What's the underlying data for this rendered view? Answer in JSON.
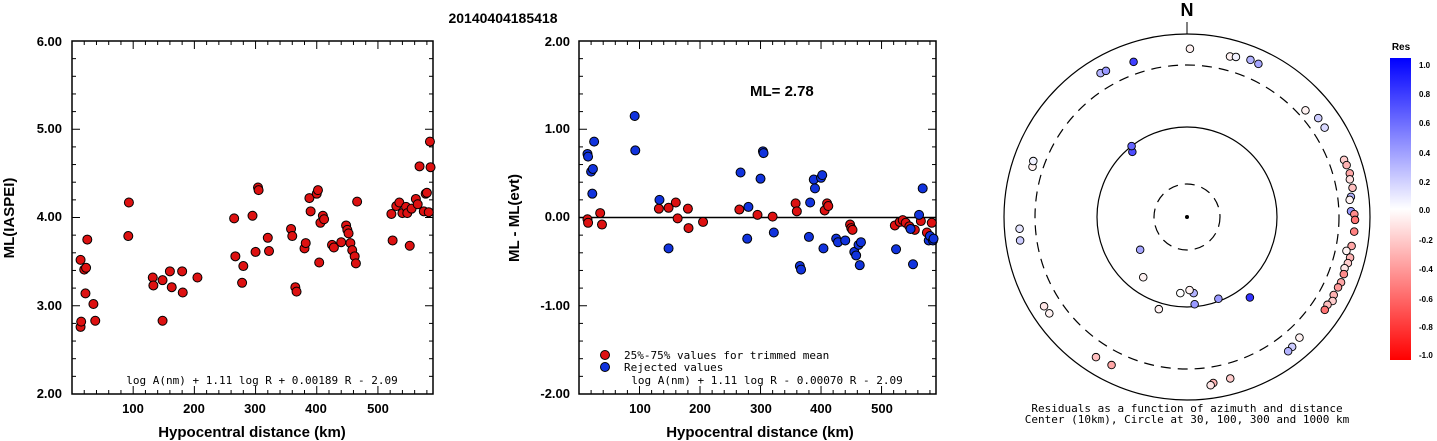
{
  "figure": {
    "title": "20140404185418"
  },
  "chart_data": [
    {
      "type": "scatter",
      "xlabel": "Hypocentral distance (km)",
      "ylabel": "ML(IASPEI)",
      "xlim": [
        0,
        590
      ],
      "ylim": [
        2.0,
        6.0
      ],
      "xticks": [
        "100",
        "200",
        "300",
        "400",
        "500"
      ],
      "yticks": [
        "2.00",
        "3.00",
        "4.00",
        "5.00",
        "6.00"
      ],
      "formula": "log A(nm) + 1.11 log R + 0.00189 R - 2.09",
      "series": [
        {
          "color": "#dd1111",
          "points": [
            [
              14,
              2.76
            ],
            [
              15,
              2.82
            ],
            [
              14,
              3.52
            ],
            [
              20,
              3.41
            ],
            [
              22,
              3.14
            ],
            [
              23,
              3.43
            ],
            [
              25,
              3.75
            ],
            [
              35,
              3.02
            ],
            [
              38,
              2.83
            ],
            [
              92,
              3.79
            ],
            [
              93,
              4.17
            ],
            [
              132,
              3.32
            ],
            [
              133,
              3.23
            ],
            [
              148,
              2.83
            ],
            [
              148,
              3.29
            ],
            [
              160,
              3.39
            ],
            [
              163,
              3.21
            ],
            [
              180,
              3.39
            ],
            [
              181,
              3.15
            ],
            [
              205,
              3.32
            ],
            [
              265,
              3.99
            ],
            [
              267,
              3.56
            ],
            [
              278,
              3.26
            ],
            [
              280,
              3.45
            ],
            [
              295,
              4.02
            ],
            [
              300,
              3.61
            ],
            [
              304,
              4.34
            ],
            [
              305,
              4.31
            ],
            [
              320,
              3.77
            ],
            [
              322,
              3.62
            ],
            [
              358,
              3.87
            ],
            [
              360,
              3.79
            ],
            [
              365,
              3.21
            ],
            [
              367,
              3.16
            ],
            [
              380,
              3.65
            ],
            [
              382,
              3.71
            ],
            [
              388,
              4.22
            ],
            [
              390,
              4.07
            ],
            [
              400,
              4.27
            ],
            [
              402,
              4.31
            ],
            [
              404,
              3.49
            ],
            [
              406,
              3.94
            ],
            [
              410,
              4.02
            ],
            [
              412,
              3.98
            ],
            [
              425,
              3.69
            ],
            [
              428,
              3.66
            ],
            [
              440,
              3.72
            ],
            [
              448,
              3.91
            ],
            [
              450,
              3.86
            ],
            [
              452,
              3.82
            ],
            [
              455,
              3.71
            ],
            [
              458,
              3.63
            ],
            [
              462,
              3.56
            ],
            [
              464,
              3.48
            ],
            [
              466,
              4.18
            ],
            [
              522,
              4.04
            ],
            [
              524,
              3.74
            ],
            [
              530,
              4.13
            ],
            [
              535,
              4.17
            ],
            [
              540,
              4.05
            ],
            [
              546,
              4.12
            ],
            [
              548,
              4.05
            ],
            [
              552,
              3.68
            ],
            [
              555,
              4.1
            ],
            [
              562,
              4.21
            ],
            [
              565,
              4.15
            ],
            [
              568,
              4.58
            ],
            [
              575,
              4.07
            ],
            [
              578,
              4.27
            ],
            [
              580,
              4.28
            ],
            [
              583,
              4.06
            ],
            [
              585,
              4.86
            ],
            [
              586,
              4.57
            ]
          ]
        }
      ]
    },
    {
      "type": "scatter",
      "xlabel": "Hypocentral distance (km)",
      "ylabel": "ML - ML(evt)",
      "xlim": [
        0,
        590
      ],
      "ylim": [
        -2.0,
        2.0
      ],
      "xticks": [
        "100",
        "200",
        "300",
        "400",
        "500"
      ],
      "yticks": [
        "-2.00",
        "-1.00",
        "0.00",
        "1.00",
        "2.00"
      ],
      "annotation": "ML= 2.78",
      "formula": "log A(nm) + 1.11 log R - 0.00070 R - 2.09",
      "legend": [
        {
          "label": "25%-75% values for trimmed mean",
          "color": "#dd1111"
        },
        {
          "label": "Rejected values",
          "color": "#1133dd"
        }
      ],
      "series": [
        {
          "name": "25%-75% values for trimmed mean",
          "color": "#dd1111",
          "points": [
            [
              14,
              -0.02
            ],
            [
              15,
              -0.06
            ],
            [
              35,
              0.05
            ],
            [
              38,
              -0.08
            ],
            [
              132,
              0.1
            ],
            [
              148,
              0.11
            ],
            [
              160,
              0.17
            ],
            [
              163,
              -0.01
            ],
            [
              180,
              0.1
            ],
            [
              181,
              -0.12
            ],
            [
              205,
              -0.05
            ],
            [
              265,
              0.09
            ],
            [
              295,
              0.03
            ],
            [
              320,
              0.01
            ],
            [
              358,
              0.16
            ],
            [
              360,
              0.07
            ],
            [
              406,
              0.08
            ],
            [
              410,
              0.16
            ],
            [
              412,
              0.13
            ],
            [
              448,
              -0.08
            ],
            [
              450,
              -0.12
            ],
            [
              452,
              -0.14
            ],
            [
              522,
              -0.09
            ],
            [
              530,
              -0.05
            ],
            [
              535,
              -0.03
            ],
            [
              540,
              -0.06
            ],
            [
              546,
              -0.1
            ],
            [
              555,
              -0.14
            ],
            [
              565,
              -0.04
            ],
            [
              575,
              -0.17
            ],
            [
              583,
              -0.06
            ]
          ]
        },
        {
          "name": "Rejected values",
          "color": "#1133dd",
          "points": [
            [
              14,
              0.72
            ],
            [
              15,
              0.69
            ],
            [
              20,
              0.52
            ],
            [
              22,
              0.27
            ],
            [
              23,
              0.55
            ],
            [
              25,
              0.86
            ],
            [
              92,
              1.15
            ],
            [
              93,
              0.76
            ],
            [
              133,
              0.2
            ],
            [
              148,
              -0.35
            ],
            [
              267,
              0.51
            ],
            [
              278,
              -0.24
            ],
            [
              280,
              0.12
            ],
            [
              300,
              0.44
            ],
            [
              304,
              0.75
            ],
            [
              305,
              0.73
            ],
            [
              322,
              -0.17
            ],
            [
              365,
              -0.55
            ],
            [
              367,
              -0.59
            ],
            [
              380,
              -0.22
            ],
            [
              382,
              0.17
            ],
            [
              388,
              0.43
            ],
            [
              390,
              0.33
            ],
            [
              400,
              0.45
            ],
            [
              402,
              0.48
            ],
            [
              404,
              -0.35
            ],
            [
              425,
              -0.24
            ],
            [
              428,
              -0.28
            ],
            [
              440,
              -0.26
            ],
            [
              455,
              -0.39
            ],
            [
              458,
              -0.43
            ],
            [
              462,
              -0.31
            ],
            [
              464,
              -0.54
            ],
            [
              466,
              -0.28
            ],
            [
              524,
              -0.36
            ],
            [
              548,
              -0.13
            ],
            [
              552,
              -0.53
            ],
            [
              562,
              0.03
            ],
            [
              568,
              0.33
            ],
            [
              578,
              -0.26
            ],
            [
              580,
              -0.21
            ],
            [
              585,
              -0.26
            ],
            [
              586,
              -0.24
            ]
          ]
        }
      ]
    },
    {
      "type": "scatter",
      "subtype": "polar",
      "north_label": "N",
      "caption_line1": "Residuals as a function of azimuth and distance",
      "caption_line2": "Center (10km), Circle at 30, 100, 300 and 1000 km",
      "circles": [
        {
          "label": "30 km",
          "style": "dashed"
        },
        {
          "label": "100 km",
          "style": "solid"
        },
        {
          "label": "300 km",
          "style": "dashed"
        },
        {
          "label": "1000 km",
          "style": "solid"
        }
      ],
      "colorbar": {
        "title": "Res",
        "ticks": [
          "1.0",
          "0.8",
          "0.6",
          "0.4",
          "0.2",
          "0.0",
          "-0.2",
          "-0.4",
          "-0.6",
          "-0.8",
          "-1.0"
        ],
        "top_color": "#0000ff",
        "mid_color": "#ffffff",
        "bottom_color": "#ff0000"
      },
      "stations": [
        {
          "az": 1,
          "dist": 565,
          "res": -0.05
        },
        {
          "az": 15,
          "dist": 520,
          "res": -0.05
        },
        {
          "az": 17,
          "dist": 545,
          "res": 0.05
        },
        {
          "az": 22,
          "dist": 590,
          "res": 0.3
        },
        {
          "az": 25,
          "dist": 580,
          "res": 0.35
        },
        {
          "az": 48,
          "dist": 400,
          "res": -0.05
        },
        {
          "az": 53,
          "dist": 485,
          "res": 0.2
        },
        {
          "az": 57,
          "dist": 480,
          "res": 0.15
        },
        {
          "az": 70,
          "dist": 540,
          "res": -0.2
        },
        {
          "az": 72,
          "dist": 555,
          "res": -0.3
        },
        {
          "az": 75,
          "dist": 570,
          "res": -0.35
        },
        {
          "az": 77,
          "dist": 540,
          "res": -0.12
        },
        {
          "az": 80,
          "dist": 560,
          "res": -0.25
        },
        {
          "az": 83,
          "dist": 500,
          "res": 0.3
        },
        {
          "az": 84,
          "dist": 470,
          "res": -0.05
        },
        {
          "az": 88,
          "dist": 480,
          "res": 0.4
        },
        {
          "az": 89,
          "dist": 545,
          "res": -0.45
        },
        {
          "az": 91,
          "dist": 560,
          "res": -0.55
        },
        {
          "az": 95,
          "dist": 555,
          "res": -0.5
        },
        {
          "az": 100,
          "dist": 540,
          "res": -0.35
        },
        {
          "az": 102,
          "dist": 460,
          "res": -0.05
        },
        {
          "az": 104,
          "dist": 560,
          "res": -0.3
        },
        {
          "az": 106,
          "dist": 545,
          "res": -0.2
        },
        {
          "az": 108,
          "dist": 510,
          "res": -0.1
        },
        {
          "az": 110,
          "dist": 535,
          "res": -0.45
        },
        {
          "az": 113,
          "dist": 545,
          "res": -0.35
        },
        {
          "az": 115,
          "dist": 530,
          "res": -0.4
        },
        {
          "az": 118,
          "dist": 520,
          "res": -0.3
        },
        {
          "az": 120,
          "dist": 560,
          "res": -0.2
        },
        {
          "az": 122,
          "dist": 510,
          "res": -0.25
        },
        {
          "az": 124,
          "dist": 520,
          "res": -0.55
        },
        {
          "az": 137,
          "dist": 495,
          "res": -0.05
        },
        {
          "az": 141,
          "dist": 540,
          "res": 0.2
        },
        {
          "az": 143,
          "dist": 560,
          "res": 0.3
        },
        {
          "az": 142,
          "dist": 124,
          "res": 0.8
        },
        {
          "az": 159,
          "dist": 95,
          "res": 0.4
        },
        {
          "az": 165,
          "dist": 540,
          "res": -0.2
        },
        {
          "az": 171,
          "dist": 560,
          "res": -0.3
        },
        {
          "az": 172,
          "dist": 600,
          "res": -0.1
        },
        {
          "az": 175,
          "dist": 75,
          "res": 0.3
        },
        {
          "az": 175,
          "dist": 95,
          "res": 0.4
        },
        {
          "az": 178,
          "dist": 70,
          "res": -0.05
        },
        {
          "az": 185,
          "dist": 75,
          "res": 0.0
        },
        {
          "az": 197,
          "dist": 112,
          "res": -0.05
        },
        {
          "az": 207,
          "dist": 520,
          "res": -0.35
        },
        {
          "az": 213,
          "dist": 540,
          "res": -0.25
        },
        {
          "az": 216,
          "dist": 72,
          "res": -0.05
        },
        {
          "az": 235,
          "dist": 50,
          "res": 0.35
        },
        {
          "az": 235,
          "dist": 560,
          "res": -0.05
        },
        {
          "az": 238,
          "dist": 570,
          "res": -0.1
        },
        {
          "az": 262,
          "dist": 570,
          "res": 0.2
        },
        {
          "az": 266,
          "dist": 555,
          "res": 0.1
        },
        {
          "az": 288,
          "dist": 450,
          "res": -0.05
        },
        {
          "az": 290,
          "dist": 470,
          "res": 0.05
        },
        {
          "az": 320,
          "dist": 90,
          "res": 0.7
        },
        {
          "az": 322,
          "dist": 100,
          "res": 0.6
        },
        {
          "az": 329,
          "dist": 555,
          "res": 0.3
        },
        {
          "az": 331,
          "dist": 540,
          "res": 0.4
        },
        {
          "az": 341,
          "dist": 480,
          "res": 0.75
        }
      ]
    }
  ]
}
